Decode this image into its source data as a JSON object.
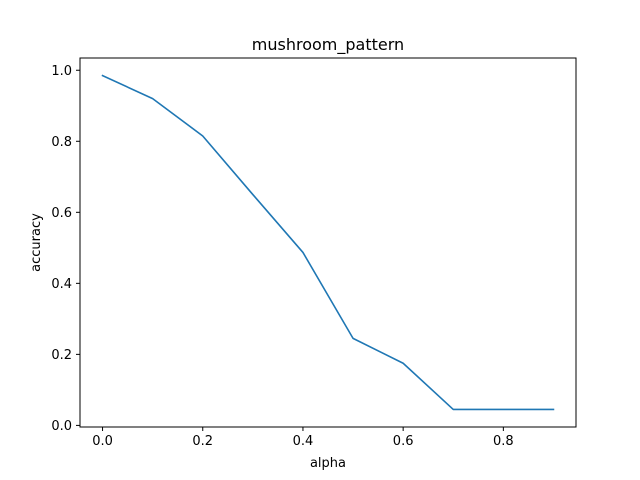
{
  "chart_data": {
    "type": "line",
    "title": "mushroom_pattern",
    "xlabel": "alpha",
    "ylabel": "accuracy",
    "xlim": [
      -0.045,
      0.945
    ],
    "ylim": [
      -0.0045,
      1.0345
    ],
    "xticks": [
      0.0,
      0.2,
      0.4,
      0.6,
      0.8
    ],
    "xtick_labels": [
      "0.0",
      "0.2",
      "0.4",
      "0.6",
      "0.8"
    ],
    "yticks": [
      0.0,
      0.2,
      0.4,
      0.6,
      0.8,
      1.0
    ],
    "ytick_labels": [
      "0.0",
      "0.2",
      "0.4",
      "0.6",
      "0.8",
      "1.0"
    ],
    "grid": false,
    "series": [
      {
        "color": "#1f77b4",
        "x": [
          0.0,
          0.1,
          0.2,
          0.3,
          0.4,
          0.5,
          0.6,
          0.7,
          0.8,
          0.9
        ],
        "y": [
          0.985,
          0.92,
          0.815,
          0.65,
          0.487,
          0.245,
          0.175,
          0.045,
          0.045,
          0.045
        ]
      }
    ]
  }
}
